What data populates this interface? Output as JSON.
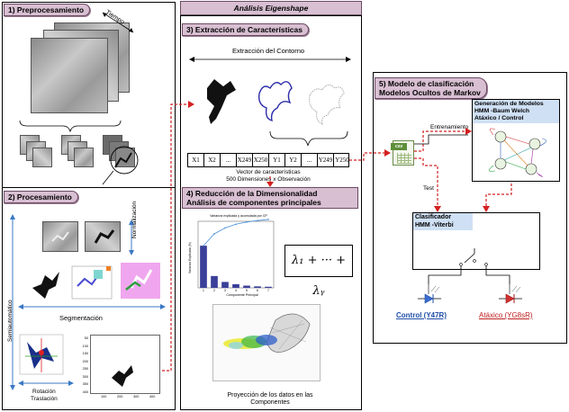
{
  "title_bar": {
    "label": "Análisis Eigenshape"
  },
  "section1": {
    "header": "1) Preprocesamiento",
    "time_label": "Tiempo"
  },
  "section2": {
    "header": "2) Procesamiento",
    "normalization_label": "Normalización",
    "semiautomatic_label": "Semiautomático",
    "segmentation_label": "Segmentación",
    "rotation_label_line1": "Rotación",
    "rotation_label_line2": "Traslación",
    "axis_ticks_y": [
      "50",
      "100",
      "150",
      "200",
      "250",
      "300",
      "350",
      "400"
    ],
    "axis_ticks_x": [
      "100",
      "200",
      "300",
      "400"
    ]
  },
  "section3": {
    "header": "3) Extracción de Características",
    "contour_label": "Extracción del Contorno",
    "vector_cells": [
      "X1",
      "X2",
      "...",
      "X249",
      "X250",
      "Y1",
      "Y2",
      "...",
      "Y249",
      "Y250"
    ],
    "vector_caption_line1": "Vector de características",
    "vector_caption_line2": "500 Dimensiones x Observación"
  },
  "section4": {
    "header_line1": "4) Reducción de la Dimensionalidad",
    "header_line2": "Análisis de componentes principales",
    "pca_chart_title": "Varianza explicada y acumulada por CP",
    "pca_xlabel": "Componente Principal",
    "pca_ylabel": "Varianza Explicada (%)",
    "lambda_formula": "λ₁ + ··· + λᵧ",
    "projection_line1": "Proyección de los datos en las",
    "projection_line2": "Componentes"
  },
  "section5": {
    "header_line1": "5) Modelo de clasificación",
    "header_line2": "Modelos Ocultos de Markov",
    "training_label": "Entrenamiento",
    "test_label": "Test",
    "csv_label": "csv",
    "model_gen_line1": "Generación de Modelos",
    "model_gen_line2": "HMM -Baum Welch",
    "model_gen_line3": "Atáxico  /  Control",
    "classifier_line1": "Clasificador",
    "classifier_line2": "HMM -Viterbi",
    "control_label": "Control (Y47R)",
    "ataxic_label": "Atáxico (YG8sR)"
  },
  "chart_data": {
    "type": "bar",
    "title": "Varianza explicada y acumulada por CP",
    "xlabel": "Componente Principal",
    "ylabel": "Varianza Explicada (%)",
    "categories": [
      "1",
      "2",
      "3",
      "4",
      "5",
      "6",
      "7"
    ],
    "series": [
      {
        "values": [
          57,
          16,
          8,
          5,
          3,
          2,
          1.5
        ]
      },
      {
        "values": [
          57,
          73,
          81,
          86,
          89,
          91,
          92.5
        ]
      }
    ],
    "ylim": [
      0,
      90
    ]
  },
  "colors": {
    "header_fill": "#d8bfd2",
    "arrow_red": "#d42020",
    "control_blue": "#1f4ea8",
    "ataxic_red": "#c02020",
    "box_blue_header": "#cfe0f4"
  }
}
